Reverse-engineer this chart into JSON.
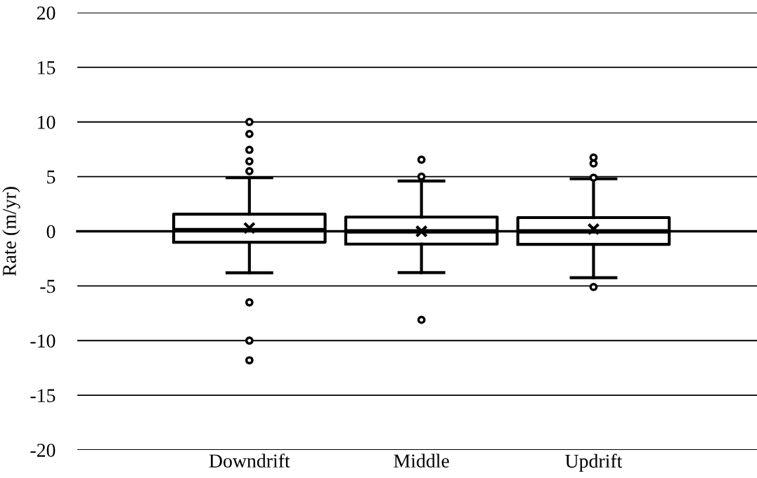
{
  "chart_data": {
    "type": "box",
    "ylabel": "Rate (m/yr)",
    "categories": [
      "Downdrift",
      "Middle",
      "Updrift"
    ],
    "boxes": [
      {
        "low": -3.8,
        "q1": -1.0,
        "median": 0.1,
        "q3": 1.57,
        "high": 4.9,
        "mean": 0.3,
        "outliers": [
          10,
          8.9,
          7.45,
          6.4,
          5.5,
          -6.5,
          -10,
          -11.8
        ]
      },
      {
        "low": -3.78,
        "q1": -1.17,
        "median": 0.0,
        "q3": 1.3,
        "high": 4.6,
        "mean": 0.0,
        "outliers": [
          6.55,
          5.0,
          -8.1
        ]
      },
      {
        "low": -4.25,
        "q1": -1.2,
        "median": 0.0,
        "q3": 1.25,
        "high": 4.8,
        "mean": 0.2,
        "outliers": [
          6.75,
          6.2,
          4.9,
          -5.1
        ]
      }
    ],
    "ylim": [
      -20,
      20
    ],
    "yticks": [
      -20,
      -15,
      -10,
      -5,
      0,
      5,
      10,
      15,
      20
    ],
    "grid": "y"
  }
}
